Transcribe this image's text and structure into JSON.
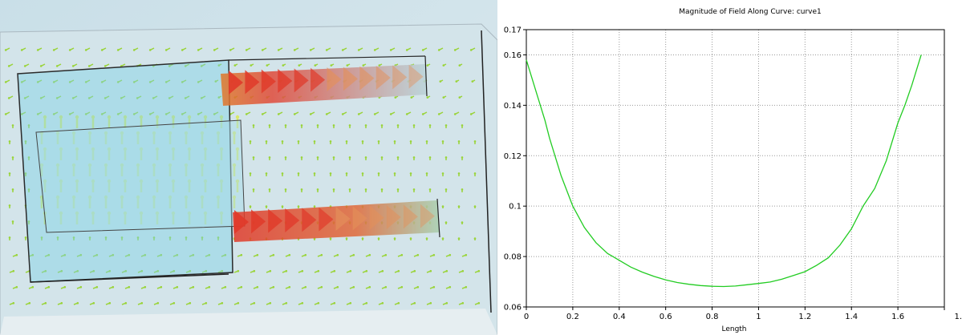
{
  "colors": {
    "curve": "#22cc22",
    "grid": "#9a9a9a",
    "frame": "#000000",
    "field_bg": "#cde3ea",
    "arrow_weak": "#9ad43a",
    "arrow_mid": "#d8e86a",
    "arrow_strong": "#e03a2a"
  },
  "field_view": {
    "icon": "vector-field-render"
  },
  "chart_data": {
    "type": "line",
    "title": "Magnitude of Field Along Curve: curve1",
    "xlabel": "Length",
    "ylabel": "",
    "xlim": [
      0,
      1.8
    ],
    "ylim": [
      0.06,
      0.17
    ],
    "grid": true,
    "x_ticks": [
      "0",
      "0.2",
      "0.4",
      "0.6",
      "0.8",
      "1",
      "1.2",
      "1.4",
      "1.6",
      "1."
    ],
    "y_ticks": [
      "0.06",
      "0.08",
      "0.1",
      "0.12",
      "0.14",
      "0.16",
      "0.17"
    ],
    "series": [
      {
        "x": [
          0,
          0.02,
          0.05,
          0.08,
          0.1,
          0.15,
          0.2,
          0.25,
          0.3,
          0.35,
          0.4,
          0.45,
          0.5,
          0.55,
          0.6,
          0.65,
          0.7,
          0.75,
          0.8,
          0.85,
          0.9,
          0.95,
          1.0,
          1.05,
          1.1,
          1.15,
          1.2,
          1.25,
          1.3,
          1.35,
          1.4,
          1.45,
          1.5,
          1.55,
          1.6,
          1.63,
          1.66,
          1.68,
          1.7
        ],
        "y": [
          0.158,
          0.152,
          0.143,
          0.134,
          0.127,
          0.112,
          0.1,
          0.0915,
          0.0855,
          0.0812,
          0.0785,
          0.0758,
          0.0738,
          0.0721,
          0.0707,
          0.0697,
          0.069,
          0.0685,
          0.0682,
          0.0681,
          0.0683,
          0.0688,
          0.0693,
          0.0699,
          0.071,
          0.0725,
          0.074,
          0.0765,
          0.0795,
          0.0845,
          0.091,
          0.1,
          0.107,
          0.118,
          0.133,
          0.14,
          0.148,
          0.154,
          0.16
        ]
      }
    ]
  }
}
